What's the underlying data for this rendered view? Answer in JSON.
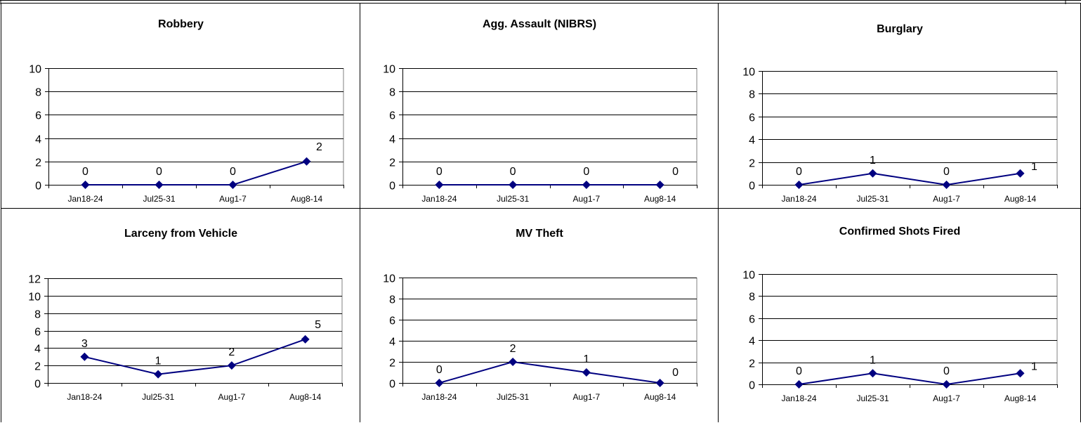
{
  "style": {
    "line_color": "#000080",
    "axis_color": "#000000",
    "grid_color": "#000000",
    "background": "#ffffff"
  },
  "chart_data": [
    {
      "type": "line",
      "title": "Robbery",
      "categories": [
        "Jan18-24",
        "Jul25-31",
        "Aug1-7",
        "Aug8-14"
      ],
      "series": [
        {
          "values": [
            0,
            0,
            0,
            2
          ]
        }
      ],
      "data_labels": [
        "0",
        "0",
        "0",
        "2"
      ],
      "ylim": [
        0,
        10
      ],
      "yticks": [
        "0",
        "2",
        "4",
        "6",
        "8",
        "10"
      ],
      "grid": true,
      "legend": "none"
    },
    {
      "type": "line",
      "title": "Agg. Assault (NIBRS)",
      "categories": [
        "Jan18-24",
        "Jul25-31",
        "Aug1-7",
        "Aug8-14"
      ],
      "series": [
        {
          "values": [
            0,
            0,
            0,
            0
          ]
        }
      ],
      "data_labels": [
        "0",
        "0",
        "0",
        "0"
      ],
      "ylim": [
        0,
        10
      ],
      "yticks": [
        "0",
        "2",
        "4",
        "6",
        "8",
        "10"
      ],
      "grid": true,
      "legend": "none"
    },
    {
      "type": "line",
      "title": "Burglary",
      "categories": [
        "Jan18-24",
        "Jul25-31",
        "Aug1-7",
        "Aug8-14"
      ],
      "series": [
        {
          "values": [
            0,
            1,
            0,
            1
          ]
        }
      ],
      "data_labels": [
        "0",
        "1",
        "0",
        "1"
      ],
      "ylim": [
        0,
        10
      ],
      "yticks": [
        "0",
        "2",
        "4",
        "6",
        "8",
        "10"
      ],
      "grid": true,
      "legend": "none"
    },
    {
      "type": "line",
      "title": "Larceny from Vehicle",
      "categories": [
        "Jan18-24",
        "Jul25-31",
        "Aug1-7",
        "Aug8-14"
      ],
      "series": [
        {
          "values": [
            3,
            1,
            2,
            5
          ]
        }
      ],
      "data_labels": [
        "3",
        "1",
        "2",
        "5"
      ],
      "ylim": [
        0,
        12
      ],
      "yticks": [
        "0",
        "2",
        "4",
        "6",
        "8",
        "10",
        "12"
      ],
      "grid": true,
      "legend": "none"
    },
    {
      "type": "line",
      "title": "MV Theft",
      "categories": [
        "Jan18-24",
        "Jul25-31",
        "Aug1-7",
        "Aug8-14"
      ],
      "series": [
        {
          "values": [
            0,
            2,
            1,
            0
          ]
        }
      ],
      "data_labels": [
        "0",
        "2",
        "1",
        "0"
      ],
      "ylim": [
        0,
        10
      ],
      "yticks": [
        "0",
        "2",
        "4",
        "6",
        "8",
        "10"
      ],
      "grid": true,
      "legend": "none"
    },
    {
      "type": "line",
      "title": "Confirmed Shots Fired",
      "categories": [
        "Jan18-24",
        "Jul25-31",
        "Aug1-7",
        "Aug8-14"
      ],
      "series": [
        {
          "values": [
            0,
            1,
            0,
            1
          ]
        }
      ],
      "data_labels": [
        "0",
        "1",
        "0",
        "1"
      ],
      "ylim": [
        0,
        10
      ],
      "yticks": [
        "0",
        "2",
        "4",
        "6",
        "8",
        "10"
      ],
      "grid": true,
      "legend": "none"
    }
  ]
}
